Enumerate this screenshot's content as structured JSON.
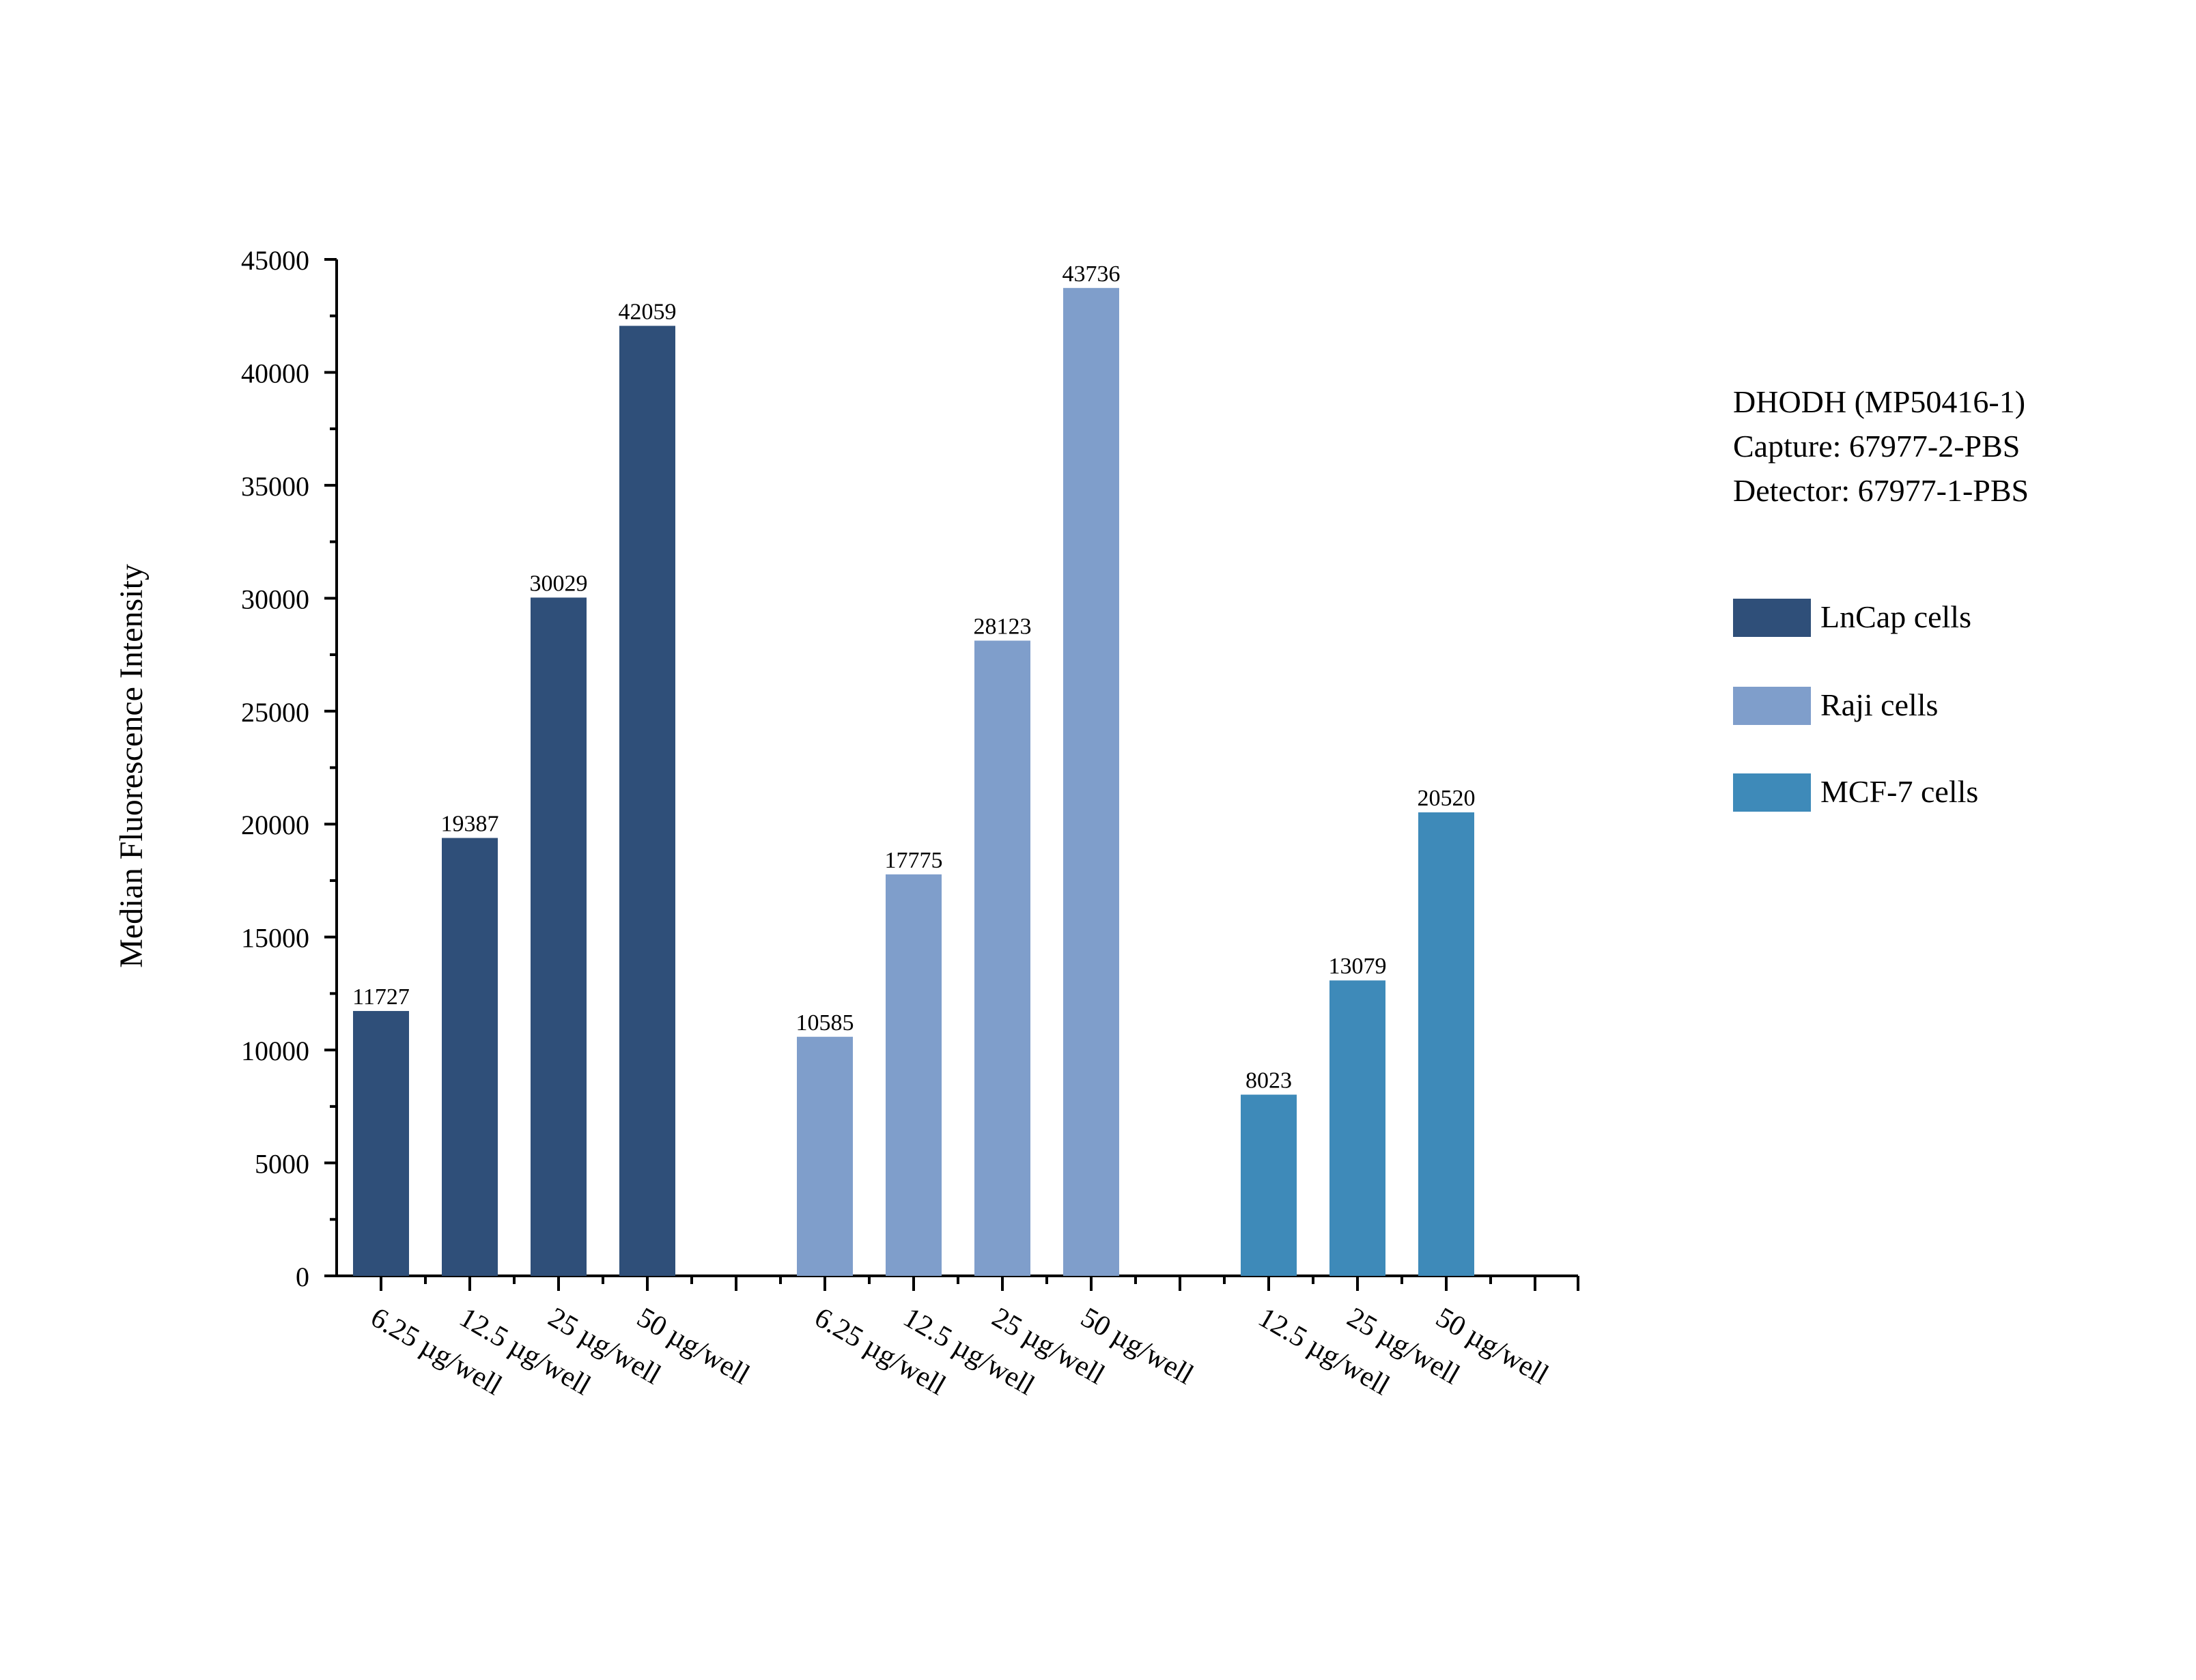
{
  "chart_data": {
    "type": "bar",
    "title": "",
    "xlabel": "",
    "ylabel": "Median Fluorescence Intensity",
    "ylim": [
      0,
      45000
    ],
    "yticks": [
      0,
      5000,
      10000,
      15000,
      20000,
      25000,
      30000,
      35000,
      40000,
      45000
    ],
    "grid": false,
    "legend_position": "right",
    "series": [
      {
        "name": "LnCap cells",
        "color": "#2f4f79",
        "categories": [
          "6.25 µg/well",
          "12.5 µg/well",
          "25 µg/well",
          "50 µg/well"
        ],
        "values": [
          11727,
          19387,
          30029,
          42059
        ]
      },
      {
        "name": "Raji cells",
        "color": "#7f9ecb",
        "categories": [
          "6.25 µg/well",
          "12.5 µg/well",
          "25 µg/well",
          "50 µg/well"
        ],
        "values": [
          10585,
          17775,
          28123,
          43736
        ]
      },
      {
        "name": "MCF-7 cells",
        "color": "#3e8ab9",
        "categories": [
          "12.5 µg/well",
          "25 µg/well",
          "50 µg/well"
        ],
        "values": [
          8023,
          13079,
          20520
        ]
      }
    ]
  },
  "annotation": {
    "lines": [
      "DHODH (MP50416-1)",
      "Capture: 67977-2-PBS",
      "Detector: 67977-1-PBS"
    ]
  }
}
